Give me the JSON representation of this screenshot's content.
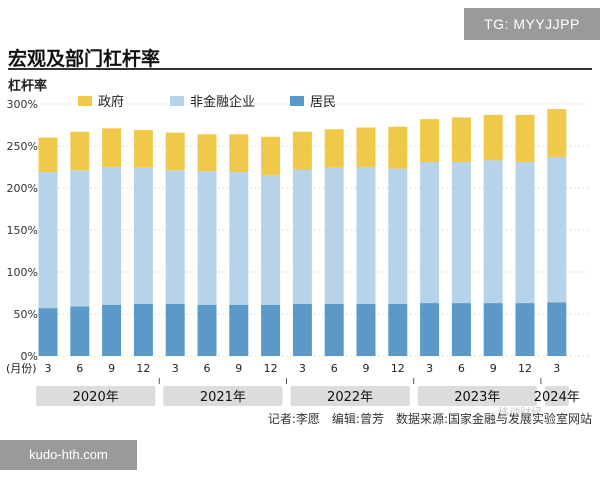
{
  "badges": {
    "top_right": "TG: MYYJJPP",
    "bottom_left": "kudo-hth.com"
  },
  "title": "宏观及部门杠杆率",
  "credit": "记者:李愿　编辑:曾芳　数据来源:国家金融与发展实验室网站",
  "watermark": "移动财经",
  "colors": {
    "government": "#f0c94a",
    "nonfinancial": "#b7d3ea",
    "household": "#5b9ac8",
    "year_bg": "#dcdcdc"
  },
  "chart_data": {
    "type": "bar",
    "stacked": true,
    "ylabel": "杠杆率",
    "ylim": [
      0,
      300
    ],
    "yticks": [
      "300%",
      "250%",
      "200%",
      "150%",
      "100%",
      "50%",
      "0%"
    ],
    "ytick_values": [
      300,
      250,
      200,
      150,
      100,
      50,
      0
    ],
    "x_unit_label": "(月份)",
    "categories": [
      "3",
      "6",
      "9",
      "12",
      "3",
      "6",
      "9",
      "12",
      "3",
      "6",
      "9",
      "12",
      "3",
      "6",
      "9",
      "12",
      "3"
    ],
    "years": [
      {
        "label": "2020年",
        "span": 4
      },
      {
        "label": "2021年",
        "span": 4
      },
      {
        "label": "2022年",
        "span": 4
      },
      {
        "label": "2023年",
        "span": 4
      },
      {
        "label": "2024年",
        "span": 1
      }
    ],
    "series": [
      {
        "name": "居民",
        "key": "household",
        "values": [
          57,
          59,
          61,
          62,
          62,
          61,
          61,
          61,
          62,
          62,
          62,
          62,
          63,
          63,
          63,
          63,
          64
        ]
      },
      {
        "name": "非金融企业",
        "key": "nonfinancial",
        "values": [
          162,
          162,
          164,
          162,
          159,
          159,
          158,
          154,
          160,
          162,
          163,
          161,
          168,
          168,
          170,
          168,
          173
        ]
      },
      {
        "name": "政府",
        "key": "government",
        "values": [
          41,
          46,
          46,
          45,
          45,
          44,
          45,
          46,
          45,
          46,
          47,
          50,
          51,
          53,
          54,
          56,
          57
        ]
      }
    ],
    "legend_order": [
      "政府",
      "非金融企业",
      "居民"
    ],
    "legend_position": "top-left"
  }
}
